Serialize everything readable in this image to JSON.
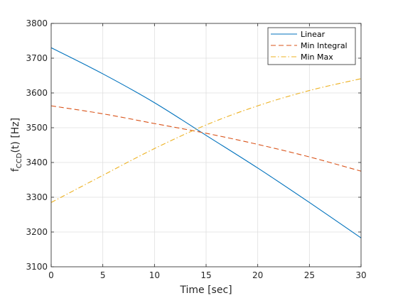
{
  "chart_data": {
    "type": "line",
    "title": "",
    "xlabel": "Time [sec]",
    "ylabel": {
      "base": "f",
      "subscript": "CCD",
      "rest": "(t) [Hz]"
    },
    "xlim": [
      0,
      30
    ],
    "ylim": [
      3100,
      3800
    ],
    "xticks": [
      0,
      5,
      10,
      15,
      20,
      25,
      30
    ],
    "yticks": [
      3100,
      3200,
      3300,
      3400,
      3500,
      3600,
      3700,
      3800
    ],
    "grid": true,
    "legend_position": "top-right",
    "x": [
      0,
      5,
      10,
      15,
      20,
      25,
      30
    ],
    "series": [
      {
        "name": "Linear",
        "color": "#0072BD",
        "style": "solid",
        "values": [
          3730,
          3655,
          3572,
          3478,
          3384,
          3285,
          3183
        ]
      },
      {
        "name": "Min Integral",
        "color": "#D95319",
        "style": "dashed",
        "values": [
          3563,
          3540,
          3512,
          3484,
          3452,
          3416,
          3375
        ]
      },
      {
        "name": "Min Max",
        "color": "#EDB120",
        "style": "dashdot",
        "values": [
          3285,
          3363,
          3440,
          3508,
          3563,
          3607,
          3641
        ]
      }
    ]
  }
}
